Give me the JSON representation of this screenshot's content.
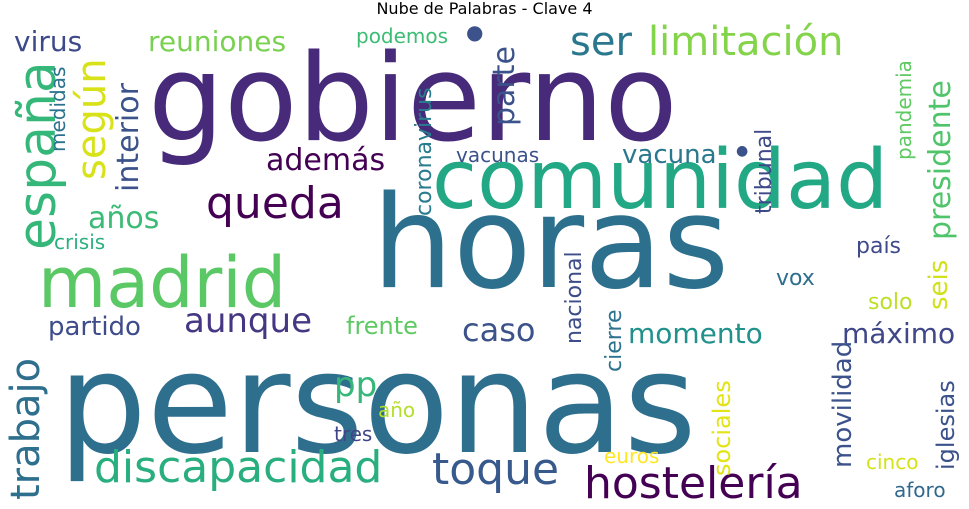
{
  "title": "Nube de Palabras - Clave 4",
  "words": [
    {
      "key": "personas",
      "text": "personas",
      "color": "#2f6f8e"
    },
    {
      "key": "horas",
      "text": "horas",
      "color": "#2d708e"
    },
    {
      "key": "gobierno",
      "text": "gobierno",
      "color": "#472a7a"
    },
    {
      "key": "comunidad",
      "text": "comunidad",
      "color": "#22a884"
    },
    {
      "key": "madrid",
      "text": "madrid",
      "color": "#5ac864"
    },
    {
      "key": "hosteleria",
      "text": "hostelería",
      "color": "#440154"
    },
    {
      "key": "discapacidad",
      "text": "discapacidad",
      "color": "#29af7f"
    },
    {
      "key": "toque",
      "text": "toque",
      "color": "#38598c"
    },
    {
      "key": "espana",
      "text": "españa",
      "color": "#35b779"
    },
    {
      "key": "queda",
      "text": "queda",
      "color": "#440154"
    },
    {
      "key": "limitacion",
      "text": "limitación",
      "color": "#84d44b"
    },
    {
      "key": "ser",
      "text": "ser",
      "color": "#2a788e"
    },
    {
      "key": "reuniones",
      "text": "reuniones",
      "color": "#7ad151"
    },
    {
      "key": "virus",
      "text": "virus",
      "color": "#3e4989"
    },
    {
      "key": "segun",
      "text": "según",
      "color": "#d8e219"
    },
    {
      "key": "interior",
      "text": "interior",
      "color": "#3b528b"
    },
    {
      "key": "podemos",
      "text": "podemos",
      "color": "#3dbc74"
    },
    {
      "key": "anos",
      "text": "años",
      "color": "#3bbb75"
    },
    {
      "key": "ademas",
      "text": "además",
      "color": "#440154"
    },
    {
      "key": "aunque",
      "text": "aunque",
      "color": "#453781"
    },
    {
      "key": "partido",
      "text": "partido",
      "color": "#3e4c8a"
    },
    {
      "key": "crisis",
      "text": "crisis",
      "color": "#2ab07f"
    },
    {
      "key": "trabajo",
      "text": "trabajo",
      "color": "#2e6f8e"
    },
    {
      "key": "caso",
      "text": "caso",
      "color": "#3b528b"
    },
    {
      "key": "frente",
      "text": "frente",
      "color": "#5ec962"
    },
    {
      "key": "momento",
      "text": "momento",
      "color": "#21918c"
    },
    {
      "key": "maximo",
      "text": "máximo",
      "color": "#3f4788"
    },
    {
      "key": "pp",
      "text": "pp",
      "color": "#35b779"
    },
    {
      "key": "ano",
      "text": "año",
      "color": "#b5de2b"
    },
    {
      "key": "tres",
      "text": "tres",
      "color": "#414487"
    },
    {
      "key": "euros",
      "text": "euros",
      "color": "#fde725"
    },
    {
      "key": "vacunas",
      "text": "vacunas",
      "color": "#3b528b"
    },
    {
      "key": "vacuna",
      "text": "vacuna",
      "color": "#2a788e"
    },
    {
      "key": "parte",
      "text": "parte",
      "color": "#3b528b"
    },
    {
      "key": "coronavirus",
      "text": "coronavirus",
      "color": "#287c8e"
    },
    {
      "key": "nacional",
      "text": "nacional",
      "color": "#3d4d8a"
    },
    {
      "key": "cierre",
      "text": "cierre",
      "color": "#2c728e"
    },
    {
      "key": "sociales",
      "text": "sociales",
      "color": "#e2e418"
    },
    {
      "key": "tribunal",
      "text": "tribunal",
      "color": "#3e4989"
    },
    {
      "key": "vox",
      "text": "vox",
      "color": "#2e6e8e"
    },
    {
      "key": "movilidad",
      "text": "movilidad",
      "color": "#3b528b"
    },
    {
      "key": "seis",
      "text": "seis",
      "color": "#d0e11c"
    },
    {
      "key": "pais",
      "text": "país",
      "color": "#3e4a89"
    },
    {
      "key": "pandemia",
      "text": "pandemia",
      "color": "#5ec962"
    },
    {
      "key": "presidente",
      "text": "presidente",
      "color": "#50c46a"
    },
    {
      "key": "solo",
      "text": "solo",
      "color": "#bddf26"
    },
    {
      "key": "iglesias",
      "text": "iglesias",
      "color": "#3b528b"
    },
    {
      "key": "cinco",
      "text": "cinco",
      "color": "#d5e21a"
    },
    {
      "key": "aforo",
      "text": "aforo",
      "color": "#31688e"
    },
    {
      "key": "medidas",
      "text": "medidas",
      "color": "#2c728e"
    },
    {
      "key": "dot",
      "text": "●",
      "color": "#3b528b"
    }
  ]
}
